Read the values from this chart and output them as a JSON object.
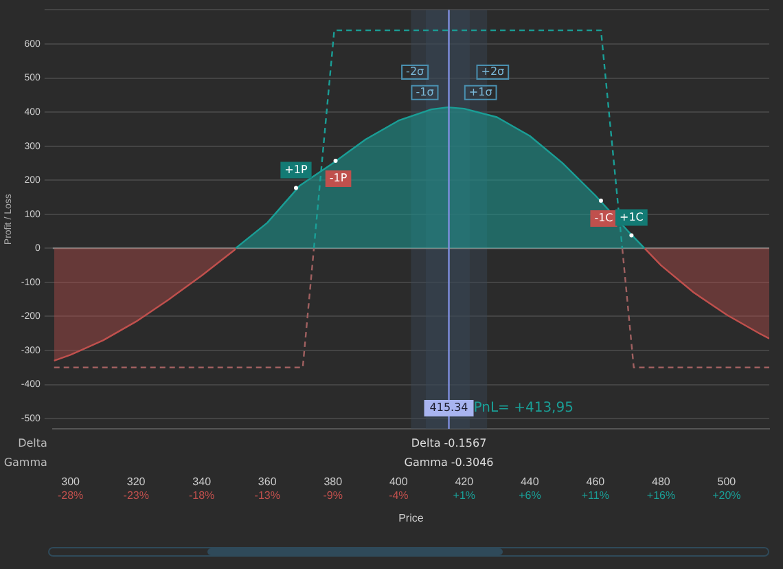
{
  "chart_data": {
    "type": "line",
    "xlabel": "Price",
    "ylabel": "Profit / Loss",
    "xlim": [
      294.6,
      513
    ],
    "ylim": [
      -530,
      700
    ],
    "xticks": [
      300,
      320,
      340,
      360,
      380,
      400,
      420,
      440,
      460,
      480,
      500
    ],
    "x2lim": [
      -29.07,
      23.51
    ],
    "x2ticks": [
      {
        "value": -27.77,
        "label": "-28%"
      },
      {
        "value": -22.95,
        "label": "-23%"
      },
      {
        "value": -18.14,
        "label": "-18%"
      },
      {
        "value": -13.32,
        "label": "-13%"
      },
      {
        "value": -8.51,
        "label": "-9%"
      },
      {
        "value": -3.69,
        "label": "-4%"
      },
      {
        "value": 1.12,
        "label": "+1%"
      },
      {
        "value": 5.94,
        "label": "+6%"
      },
      {
        "value": 10.75,
        "label": "+11%"
      },
      {
        "value": 15.57,
        "label": "+16%"
      },
      {
        "value": 20.38,
        "label": "+20%"
      }
    ],
    "yticks": [
      -500,
      -400,
      -300,
      -200,
      -100,
      0,
      100,
      200,
      300,
      400,
      500,
      600,
      {
        "value": 700,
        "label": null
      }
    ],
    "grid": "y",
    "legend": false,
    "marker": "none",
    "series": [
      {
        "type": "area",
        "color": "#c0504d",
        "x": [
          295,
          300,
          310,
          320,
          330,
          340,
          350,
          350.3
        ],
        "values": [
          -330,
          -313,
          -270,
          -215,
          -150,
          -80,
          -5,
          0
        ]
      },
      {
        "type": "area",
        "color": "#1a9e96",
        "x": [
          350.3,
          360,
          370,
          380,
          390,
          400,
          410,
          415,
          420,
          430,
          440,
          450,
          460,
          470,
          475
        ],
        "values": [
          0,
          75,
          185,
          250,
          320,
          375,
          408,
          414,
          410,
          385,
          330,
          250,
          155,
          50,
          0
        ]
      },
      {
        "type": "area",
        "color": "#c0504d",
        "x": [
          475,
          480,
          490,
          500,
          510,
          513
        ],
        "values": [
          0,
          -50,
          -130,
          -195,
          -250,
          -265
        ]
      },
      {
        "type": "line",
        "line_style": "dashed",
        "color": "#a06060",
        "x": [
          295,
          370.8,
          374.2
        ],
        "values": [
          -350,
          -350,
          0
        ]
      },
      {
        "type": "line",
        "line_style": "dashed",
        "color": "#1a9e96",
        "x": [
          374.2,
          380.4,
          461.7,
          468.2
        ],
        "values": [
          0,
          640,
          640,
          0
        ]
      },
      {
        "type": "line",
        "line_style": "dashed",
        "color": "#a06060",
        "x": [
          468.2,
          471.7,
          513
        ],
        "values": [
          0,
          -350,
          -350
        ]
      }
    ],
    "ref_lines": [
      {
        "axis": "x",
        "value": 415.34,
        "label": "415.34",
        "color": "#7f8fe0"
      }
    ],
    "bands": [
      {
        "axis": "x",
        "from": 403.8,
        "to": 427,
        "color": "#3a4656"
      },
      {
        "axis": "x",
        "from": 408.3,
        "to": 421.7,
        "color": "#3a4656"
      }
    ],
    "annotations": [
      {
        "text": "+1P",
        "x": 368.75,
        "y": 177
      },
      {
        "text": "-1P",
        "x": 380.8,
        "y": 257
      },
      {
        "text": "-1C",
        "x": 461.7,
        "y": 140
      },
      {
        "text": "+1C",
        "x": 471,
        "y": 38
      },
      {
        "text": "-2σ",
        "x": 405,
        "y": 517
      },
      {
        "text": "+2σ",
        "x": 428.7,
        "y": 517
      },
      {
        "text": "-1σ",
        "x": 408,
        "y": 457
      },
      {
        "text": "+1σ",
        "x": 425,
        "y": 457
      },
      "PnL= +413,95",
      "Delta",
      "Gamma",
      "Delta -0.1567",
      "Gamma -0.3046"
    ]
  }
}
